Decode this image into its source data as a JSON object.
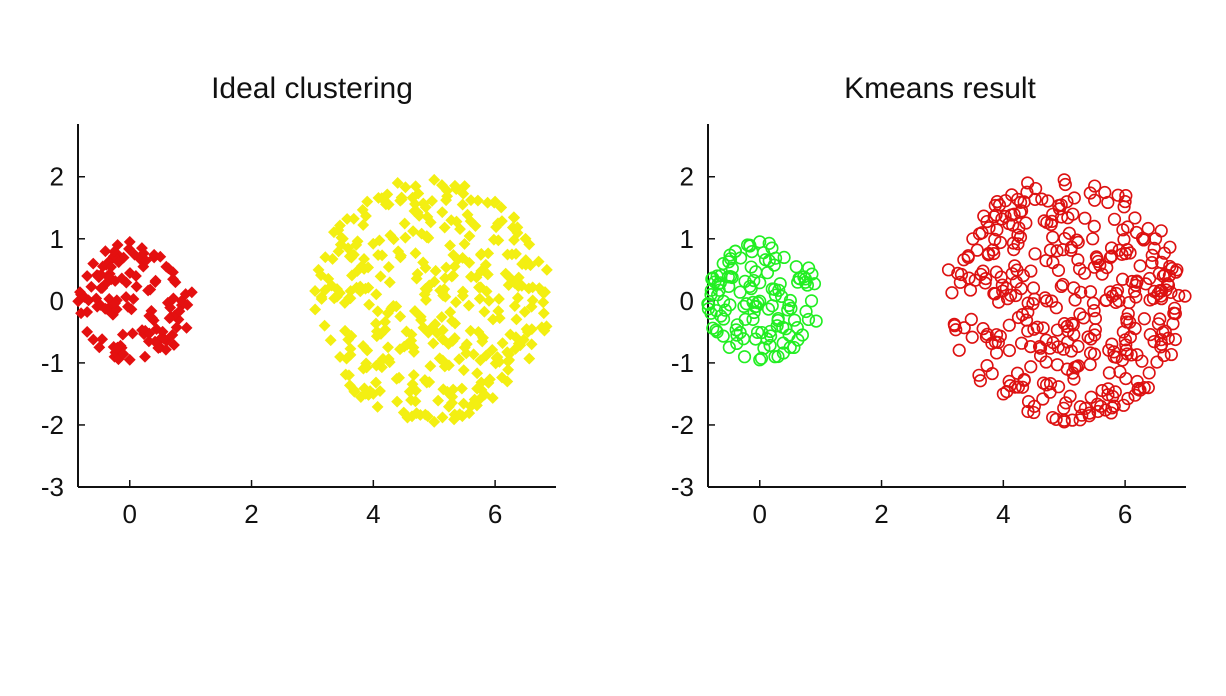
{
  "chart_data": [
    {
      "type": "scatter",
      "title": "Ideal clustering",
      "xlabel": "",
      "ylabel": "",
      "xlim": [
        -0.85,
        7
      ],
      "ylim": [
        -3,
        2.85
      ],
      "xticks": [
        0,
        2,
        4,
        6
      ],
      "yticks": [
        2,
        1,
        0,
        -1,
        -2,
        -3
      ],
      "grid": false,
      "marker": "filled-diamond",
      "series": [
        {
          "color": "#e41010",
          "center": [
            0.1,
            -0.05
          ],
          "radius": 0.95,
          "count": 130,
          "points": [
            [
              -0.8,
              0.1
            ],
            [
              -0.7,
              0.4
            ],
            [
              -0.6,
              0.6
            ],
            [
              -0.4,
              0.8
            ],
            [
              -0.2,
              0.9
            ],
            [
              0,
              0.95
            ],
            [
              0.2,
              0.85
            ],
            [
              0.4,
              0.7
            ],
            [
              0.6,
              0.55
            ],
            [
              0.75,
              0.3
            ],
            [
              0.85,
              0
            ],
            [
              0.8,
              -0.3
            ],
            [
              0.7,
              -0.55
            ],
            [
              0.5,
              -0.75
            ],
            [
              0.25,
              -0.9
            ],
            [
              0,
              -0.95
            ],
            [
              -0.25,
              -0.9
            ],
            [
              -0.5,
              -0.75
            ],
            [
              -0.7,
              -0.5
            ],
            [
              -0.8,
              -0.2
            ]
          ]
        },
        {
          "color": "#f3ef12",
          "center": [
            4.95,
            0
          ],
          "radius": 1.95,
          "count": 380,
          "points": [
            [
              3.1,
              0.5
            ],
            [
              3.2,
              -0.4
            ],
            [
              3.5,
              1
            ],
            [
              3.6,
              -1.2
            ],
            [
              3.9,
              1.6
            ],
            [
              4,
              -1.5
            ],
            [
              4.4,
              1.9
            ],
            [
              4.5,
              -1.8
            ],
            [
              5,
              1.95
            ],
            [
              5,
              -1.95
            ],
            [
              5.5,
              1.85
            ],
            [
              5.6,
              -1.7
            ],
            [
              6,
              1.6
            ],
            [
              6.2,
              -1.3
            ],
            [
              6.5,
              1
            ],
            [
              6.6,
              -0.7
            ],
            [
              6.85,
              0.5
            ],
            [
              6.8,
              -0.2
            ],
            [
              3.9,
              -0.8
            ],
            [
              5.9,
              0
            ]
          ]
        }
      ]
    },
    {
      "type": "scatter",
      "title": "Kmeans result",
      "xlabel": "",
      "ylabel": "",
      "xlim": [
        -0.85,
        7
      ],
      "ylim": [
        -3,
        2.85
      ],
      "xticks": [
        0,
        2,
        4,
        6
      ],
      "yticks": [
        2,
        1,
        0,
        -1,
        -2,
        -3
      ],
      "grid": false,
      "marker": "open-circle",
      "series": [
        {
          "color": "#22ee22",
          "center": [
            0.05,
            0
          ],
          "radius": 0.95,
          "count": 130,
          "points": [
            [
              -0.8,
              0.1
            ],
            [
              -0.7,
              0.4
            ],
            [
              -0.6,
              0.6
            ],
            [
              -0.4,
              0.8
            ],
            [
              -0.2,
              0.9
            ],
            [
              0,
              0.95
            ],
            [
              0.2,
              0.85
            ],
            [
              0.4,
              0.7
            ],
            [
              0.6,
              0.55
            ],
            [
              0.75,
              0.3
            ],
            [
              0.85,
              0
            ],
            [
              0.8,
              -0.3
            ],
            [
              0.7,
              -0.55
            ],
            [
              0.5,
              -0.75
            ],
            [
              0.25,
              -0.9
            ],
            [
              0,
              -0.95
            ],
            [
              -0.25,
              -0.9
            ],
            [
              -0.5,
              -0.75
            ],
            [
              -0.7,
              -0.5
            ],
            [
              -0.8,
              -0.2
            ]
          ]
        },
        {
          "color": "#dd1111",
          "center": [
            5.05,
            0
          ],
          "radius": 1.95,
          "count": 380,
          "points": [
            [
              3.1,
              0.5
            ],
            [
              3.2,
              -0.4
            ],
            [
              3.5,
              1
            ],
            [
              3.6,
              -1.2
            ],
            [
              3.9,
              1.6
            ],
            [
              4,
              -1.5
            ],
            [
              4.4,
              1.9
            ],
            [
              4.5,
              -1.8
            ],
            [
              5,
              1.95
            ],
            [
              5,
              -1.95
            ],
            [
              5.5,
              1.85
            ],
            [
              5.6,
              -1.7
            ],
            [
              6,
              1.6
            ],
            [
              6.2,
              -1.3
            ],
            [
              6.5,
              1
            ],
            [
              6.6,
              -0.7
            ],
            [
              6.85,
              0.5
            ],
            [
              6.8,
              -0.2
            ],
            [
              4.1,
              -0.8
            ],
            [
              5.9,
              0
            ]
          ]
        }
      ]
    }
  ]
}
